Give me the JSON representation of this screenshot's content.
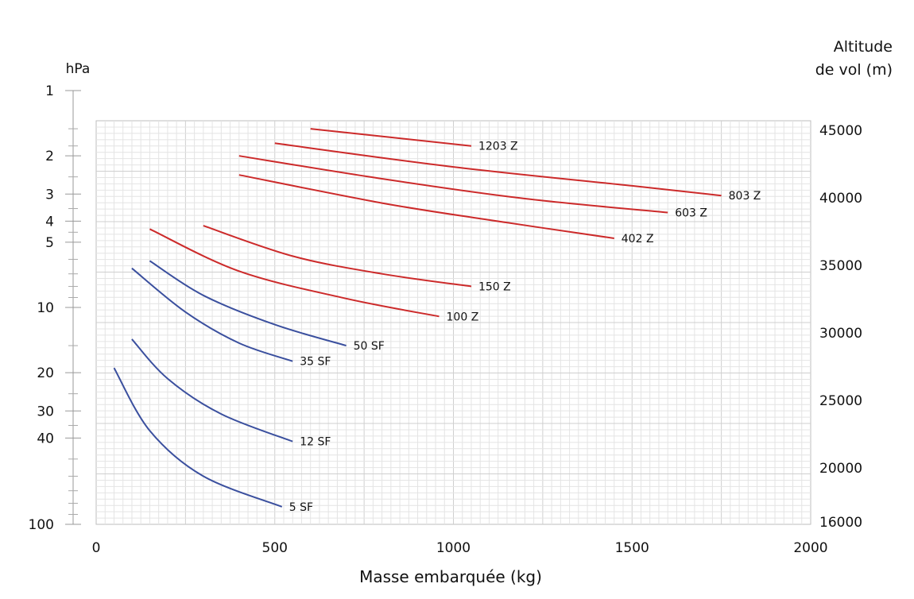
{
  "chart_data": {
    "type": "line",
    "xlabel": "Masse embarquée (kg)",
    "y_left_label": "hPa",
    "y_right_label_lines": [
      "Altitude",
      "de vol (m)"
    ],
    "x_ticks": [
      0,
      500,
      1000,
      1500,
      2000
    ],
    "xlim": [
      0,
      2000
    ],
    "y_left_scale": "log",
    "y_left_range_hpa": [
      1,
      100
    ],
    "y_left_ticks": [
      1,
      2,
      3,
      4,
      5,
      10,
      20,
      30,
      40,
      100
    ],
    "y_left_minor_ticks": [
      1.5,
      1.8,
      2.5,
      3.5,
      4.5,
      6,
      7,
      8,
      9,
      15,
      25,
      35,
      50,
      60,
      70,
      80,
      90
    ],
    "y_right_ticks": [
      45000,
      40000,
      35000,
      30000,
      25000,
      20000,
      16000
    ],
    "grid": true,
    "series": [
      {
        "name": "1203 Z",
        "color": "#cc2a2a",
        "points": [
          [
            600,
            1.5
          ],
          [
            1050,
            1.8
          ]
        ]
      },
      {
        "name": "803 Z",
        "color": "#cc2a2a",
        "points": [
          [
            500,
            1.75
          ],
          [
            1000,
            2.25
          ],
          [
            1500,
            2.75
          ],
          [
            1750,
            3.05
          ]
        ]
      },
      {
        "name": "603 Z",
        "color": "#cc2a2a",
        "points": [
          [
            400,
            2.0
          ],
          [
            800,
            2.55
          ],
          [
            1200,
            3.15
          ],
          [
            1600,
            3.65
          ]
        ]
      },
      {
        "name": "402 Z",
        "color": "#cc2a2a",
        "points": [
          [
            400,
            2.45
          ],
          [
            800,
            3.3
          ],
          [
            1100,
            3.95
          ],
          [
            1450,
            4.8
          ]
        ]
      },
      {
        "name": "150 Z",
        "color": "#cc2a2a",
        "points": [
          [
            300,
            4.2
          ],
          [
            550,
            5.8
          ],
          [
            800,
            7.0
          ],
          [
            1050,
            8.0
          ]
        ]
      },
      {
        "name": "100 Z",
        "color": "#cc2a2a",
        "points": [
          [
            150,
            4.35
          ],
          [
            400,
            6.8
          ],
          [
            700,
            9.1
          ],
          [
            960,
            11.0
          ]
        ]
      },
      {
        "name": "50 SF",
        "color": "#3a4f9e",
        "points": [
          [
            150,
            6.1
          ],
          [
            300,
            8.8
          ],
          [
            500,
            12.0
          ],
          [
            700,
            15.0
          ]
        ]
      },
      {
        "name": "35 SF",
        "color": "#3a4f9e",
        "points": [
          [
            100,
            6.6
          ],
          [
            250,
            10.5
          ],
          [
            400,
            14.6
          ],
          [
            550,
            17.7
          ]
        ]
      },
      {
        "name": "12 SF",
        "color": "#3a4f9e",
        "points": [
          [
            100,
            14.0
          ],
          [
            200,
            21.3
          ],
          [
            350,
            31.0
          ],
          [
            550,
            41.5
          ]
        ]
      },
      {
        "name": "5 SF",
        "color": "#3a4f9e",
        "points": [
          [
            50,
            19.0
          ],
          [
            150,
            37.0
          ],
          [
            300,
            60.0
          ],
          [
            520,
            83.0
          ]
        ]
      }
    ]
  }
}
